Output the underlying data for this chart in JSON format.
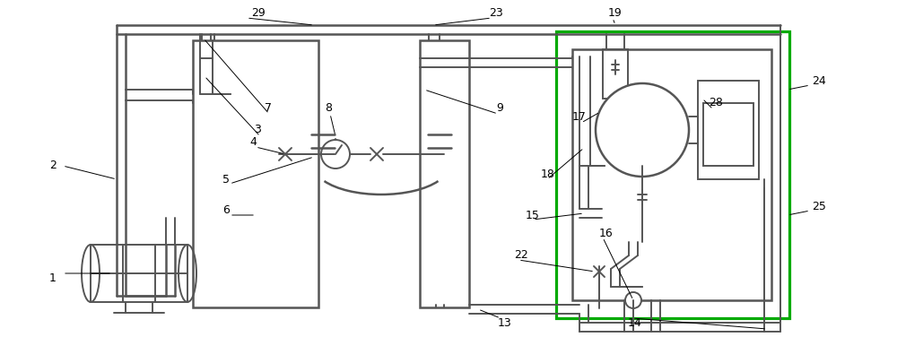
{
  "bg_color": "#ffffff",
  "lc": "#888888",
  "lc2": "#555555",
  "gc": "#00aa00",
  "lw": 1.4,
  "lw2": 1.8,
  "figsize": [
    10.0,
    3.76
  ],
  "dpi": 100
}
